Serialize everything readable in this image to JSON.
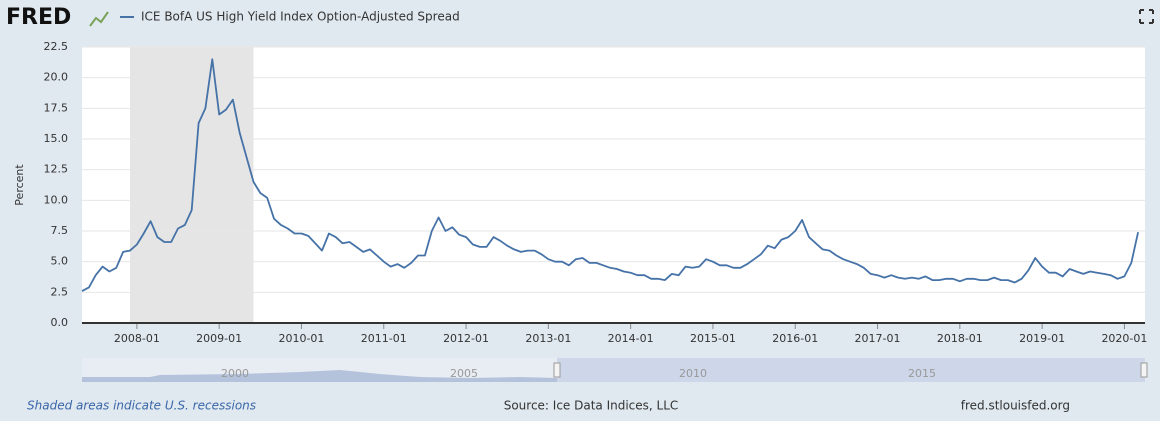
{
  "chart_data": {
    "type": "line",
    "logo": "FRED",
    "footnote": "Shaded areas indicate U.S. recessions",
    "source": "Source: Ice Data Indices, LLC",
    "site": "fred.stlouisfed.org",
    "ylabel": "Percent",
    "grid": true,
    "recession": [
      "2007-12",
      "2009-06"
    ],
    "xlim": [
      "2007-05",
      "2020-04"
    ],
    "xticks": [
      "2008-01",
      "2009-01",
      "2010-01",
      "2011-01",
      "2012-01",
      "2013-01",
      "2014-01",
      "2015-01",
      "2016-01",
      "2017-01",
      "2018-01",
      "2019-01",
      "2020-01"
    ],
    "ylim": [
      0,
      22.5
    ],
    "yticks": [
      {
        "value": 0,
        "label": "0.0"
      },
      2.5,
      {
        "value": 5,
        "label": "5.0"
      },
      7.5,
      {
        "value": 10,
        "label": "10.0"
      },
      12.5,
      {
        "value": 15,
        "label": "15.0"
      },
      17.5,
      {
        "value": 20,
        "label": "20.0"
      },
      22.5
    ],
    "navigator_ticks": [
      2000,
      2005,
      2010,
      2015
    ],
    "x": [
      "2007-05",
      "2007-06",
      "2007-07",
      "2007-08",
      "2007-09",
      "2007-10",
      "2007-11",
      "2007-12",
      "2008-01",
      "2008-02",
      "2008-03",
      "2008-04",
      "2008-05",
      "2008-06",
      "2008-07",
      "2008-08",
      "2008-09",
      "2008-10",
      "2008-11",
      "2008-12",
      "2009-01",
      "2009-02",
      "2009-03",
      "2009-04",
      "2009-05",
      "2009-06",
      "2009-07",
      "2009-08",
      "2009-09",
      "2009-10",
      "2009-11",
      "2009-12",
      "2010-01",
      "2010-02",
      "2010-03",
      "2010-04",
      "2010-05",
      "2010-06",
      "2010-07",
      "2010-08",
      "2010-09",
      "2010-10",
      "2010-11",
      "2010-12",
      "2011-01",
      "2011-02",
      "2011-03",
      "2011-04",
      "2011-05",
      "2011-06",
      "2011-07",
      "2011-08",
      "2011-09",
      "2011-10",
      "2011-11",
      "2011-12",
      "2012-01",
      "2012-02",
      "2012-03",
      "2012-04",
      "2012-05",
      "2012-06",
      "2012-07",
      "2012-08",
      "2012-09",
      "2012-10",
      "2012-11",
      "2012-12",
      "2013-01",
      "2013-02",
      "2013-03",
      "2013-04",
      "2013-05",
      "2013-06",
      "2013-07",
      "2013-08",
      "2013-09",
      "2013-10",
      "2013-11",
      "2013-12",
      "2014-01",
      "2014-02",
      "2014-03",
      "2014-04",
      "2014-05",
      "2014-06",
      "2014-07",
      "2014-08",
      "2014-09",
      "2014-10",
      "2014-11",
      "2014-12",
      "2015-01",
      "2015-02",
      "2015-03",
      "2015-04",
      "2015-05",
      "2015-06",
      "2015-07",
      "2015-08",
      "2015-09",
      "2015-10",
      "2015-11",
      "2015-12",
      "2016-01",
      "2016-02",
      "2016-03",
      "2016-04",
      "2016-05",
      "2016-06",
      "2016-07",
      "2016-08",
      "2016-09",
      "2016-10",
      "2016-11",
      "2016-12",
      "2017-01",
      "2017-02",
      "2017-03",
      "2017-04",
      "2017-05",
      "2017-06",
      "2017-07",
      "2017-08",
      "2017-09",
      "2017-10",
      "2017-11",
      "2017-12",
      "2018-01",
      "2018-02",
      "2018-03",
      "2018-04",
      "2018-05",
      "2018-06",
      "2018-07",
      "2018-08",
      "2018-09",
      "2018-10",
      "2018-11",
      "2018-12",
      "2019-01",
      "2019-02",
      "2019-03",
      "2019-04",
      "2019-05",
      "2019-06",
      "2019-07",
      "2019-08",
      "2019-09",
      "2019-10",
      "2019-11",
      "2019-12",
      "2020-01",
      "2020-02",
      "2020-03"
    ],
    "series": [
      {
        "name": "ICE BofA US High Yield Index Option-Adjusted Spread",
        "color": "#4572a7",
        "values": [
          2.6,
          2.9,
          3.9,
          4.6,
          4.2,
          4.5,
          5.8,
          5.9,
          6.4,
          7.3,
          8.3,
          7.0,
          6.6,
          6.6,
          7.7,
          8.0,
          9.2,
          16.3,
          17.5,
          21.5,
          17.0,
          17.4,
          18.2,
          15.5,
          13.5,
          11.5,
          10.6,
          10.2,
          8.5,
          8.0,
          7.7,
          7.3,
          7.3,
          7.1,
          6.5,
          5.9,
          7.3,
          7.0,
          6.5,
          6.6,
          6.2,
          5.8,
          6.0,
          5.5,
          5.0,
          4.6,
          4.8,
          4.5,
          4.9,
          5.5,
          5.5,
          7.5,
          8.6,
          7.5,
          7.8,
          7.2,
          7.0,
          6.4,
          6.2,
          6.2,
          7.0,
          6.7,
          6.3,
          6.0,
          5.8,
          5.9,
          5.9,
          5.6,
          5.2,
          5.0,
          5.0,
          4.7,
          5.2,
          5.3,
          4.9,
          4.9,
          4.7,
          4.5,
          4.4,
          4.2,
          4.1,
          3.9,
          3.9,
          3.6,
          3.6,
          3.5,
          4.0,
          3.9,
          4.6,
          4.5,
          4.6,
          5.2,
          5.0,
          4.7,
          4.7,
          4.5,
          4.5,
          4.8,
          5.2,
          5.6,
          6.3,
          6.1,
          6.8,
          7.0,
          7.5,
          8.4,
          7.0,
          6.5,
          6.0,
          5.9,
          5.5,
          5.2,
          5.0,
          4.8,
          4.5,
          4.0,
          3.9,
          3.7,
          3.9,
          3.7,
          3.6,
          3.7,
          3.6,
          3.8,
          3.5,
          3.5,
          3.6,
          3.6,
          3.4,
          3.6,
          3.6,
          3.5,
          3.5,
          3.7,
          3.5,
          3.5,
          3.3,
          3.6,
          4.3,
          5.3,
          4.6,
          4.1,
          4.1,
          3.8,
          4.4,
          4.2,
          4.0,
          4.2,
          4.1,
          4.0,
          3.9,
          3.6,
          3.8,
          4.9,
          7.4
        ]
      }
    ]
  }
}
